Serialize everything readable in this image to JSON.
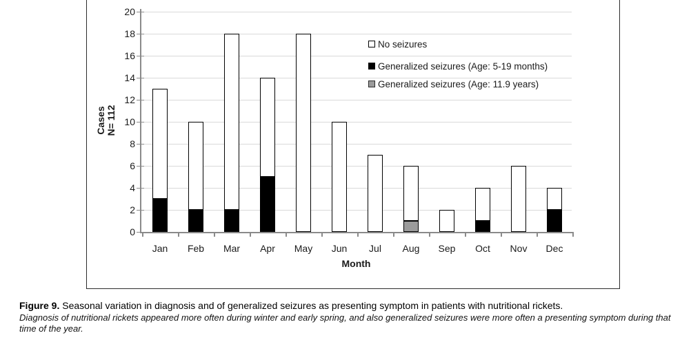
{
  "figure": {
    "caption_label": "Figure 9.",
    "caption_text": " Seasonal variation in diagnosis and of generalized seizures as presenting symptom in patients with nutritional rickets.",
    "caption_italic": "Diagnosis of nutritional rickets appeared more often during winter and early spring, and also generalized seizures were more often a presenting symptom during that time of the year."
  },
  "chart_data": {
    "type": "bar",
    "stacked": true,
    "title": "",
    "xlabel": "Month",
    "ylabel": "Cases N= 112",
    "ylabel_lines": [
      "Cases",
      "N= 112"
    ],
    "ylim": [
      0,
      20
    ],
    "ytick_step": 2,
    "yticks": [
      0,
      2,
      4,
      6,
      8,
      10,
      12,
      14,
      16,
      18,
      20
    ],
    "grid": true,
    "legend_position": "upper right inside plot",
    "categories": [
      "Jan",
      "Feb",
      "Mar",
      "Apr",
      "May",
      "Jun",
      "Jul",
      "Aug",
      "Sep",
      "Oct",
      "Nov",
      "Dec"
    ],
    "series": [
      {
        "name": "Generalized seizures (Age: 5-19 months)",
        "color": "#000000",
        "values": [
          3,
          2,
          2,
          5,
          0,
          0,
          0,
          0,
          0,
          1,
          0,
          2
        ]
      },
      {
        "name": "Generalized seizures (Age: 11.9 years)",
        "color": "#9b9b9b",
        "values": [
          0,
          0,
          0,
          0,
          0,
          0,
          0,
          1,
          0,
          0,
          0,
          0
        ]
      },
      {
        "name": "No seizures",
        "color": "#ffffff",
        "values": [
          10,
          8,
          16,
          9,
          18,
          10,
          7,
          5,
          2,
          3,
          6,
          2
        ]
      }
    ],
    "totals": [
      13,
      10,
      18,
      14,
      18,
      10,
      7,
      6,
      2,
      4,
      6,
      4
    ],
    "legend": [
      {
        "label": "No seizures",
        "color": "#ffffff"
      },
      {
        "label": "Generalized seizures (Age: 5-19 months)",
        "color": "#000000"
      },
      {
        "label": "Generalized seizures (Age: 11.9 years)",
        "color": "#9b9b9b"
      }
    ]
  },
  "colors": {
    "grid": "#d9d9d9",
    "axis": "#8a8a8a",
    "bar_border": "#000000",
    "frame_border": "#2b2b2b",
    "gray_series": "#9b9b9b"
  }
}
